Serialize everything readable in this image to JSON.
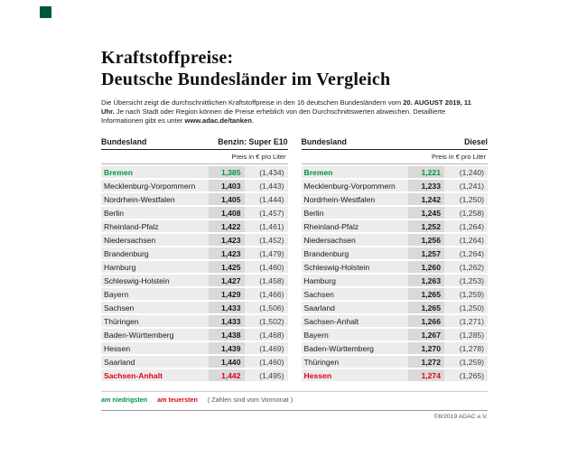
{
  "brand": {
    "square_color": "#00573c"
  },
  "header": {
    "title_line1": "Kraftstoffpreise:",
    "title_line2": "Deutsche Bundesländer im Vergleich"
  },
  "intro": {
    "p1": "Die Übersicht zeigt die durchschnittlichen Kraftstoffpreise in den 16 deutschen Bundesländern vom ",
    "b1": "20. AUGUST 2019, 11 Uhr.",
    "p2": " Je nach Stadt oder Region können die Preise erheblich von den Durchschnittswerten abweichen. Detaillierte Informationen gibt es unter ",
    "b2": "www.adac.de/tanken",
    "p3": "."
  },
  "legend": {
    "lowest_label": "am niedrigsten",
    "highest_label": "am teuersten",
    "note": "( Zahlen sind vom Vormonat )"
  },
  "footer": {
    "copyright": "©8/2019 ADAC e.V."
  },
  "colors": {
    "green": "#009641",
    "red": "#e2001a",
    "row_bg": "#ececec",
    "price_bg": "#d9d9d9"
  },
  "chart_data": [
    {
      "type": "table",
      "state_column": "Bundesland",
      "fuel_column": "Benzin: Super E10",
      "unit_label": "Preis in € pro Liter",
      "rows": [
        {
          "name": "Bremen",
          "price": "1,385",
          "prev": "(1,434)",
          "status": "lowest"
        },
        {
          "name": "Mecklenburg-Vorpommern",
          "price": "1,403",
          "prev": "(1,443)",
          "status": "normal"
        },
        {
          "name": "Nordrhein-Westfalen",
          "price": "1,405",
          "prev": "(1,444)",
          "status": "normal"
        },
        {
          "name": "Berlin",
          "price": "1,408",
          "prev": "(1,457)",
          "status": "normal"
        },
        {
          "name": "Rheinland-Pfalz",
          "price": "1,422",
          "prev": "(1,461)",
          "status": "normal"
        },
        {
          "name": "Niedersachsen",
          "price": "1,423",
          "prev": "(1,452)",
          "status": "normal"
        },
        {
          "name": "Brandenburg",
          "price": "1,423",
          "prev": "(1,479)",
          "status": "normal"
        },
        {
          "name": "Hamburg",
          "price": "1,425",
          "prev": "(1,460)",
          "status": "normal"
        },
        {
          "name": "Schleswig-Holstein",
          "price": "1,427",
          "prev": "(1,458)",
          "status": "normal"
        },
        {
          "name": "Bayern",
          "price": "1,429",
          "prev": "(1,466)",
          "status": "normal"
        },
        {
          "name": "Sachsen",
          "price": "1,433",
          "prev": "(1,506)",
          "status": "normal"
        },
        {
          "name": "Thüringen",
          "price": "1,433",
          "prev": "(1,502)",
          "status": "normal"
        },
        {
          "name": "Baden-Württemberg",
          "price": "1,438",
          "prev": "(1,468)",
          "status": "normal"
        },
        {
          "name": "Hessen",
          "price": "1,439",
          "prev": "(1,469)",
          "status": "normal"
        },
        {
          "name": "Saarland",
          "price": "1,440",
          "prev": "(1,460)",
          "status": "normal"
        },
        {
          "name": "Sachsen-Anhalt",
          "price": "1,442",
          "prev": "(1,495)",
          "status": "highest"
        }
      ]
    },
    {
      "type": "table",
      "state_column": "Bundesland",
      "fuel_column": "Diesel",
      "unit_label": "Preis in € pro Liter",
      "rows": [
        {
          "name": "Bremen",
          "price": "1,221",
          "prev": "(1,240)",
          "status": "lowest"
        },
        {
          "name": "Mecklenburg-Vorpommern",
          "price": "1,233",
          "prev": "(1,241)",
          "status": "normal"
        },
        {
          "name": "Nordrhein-Westfalen",
          "price": "1,242",
          "prev": "(1,250)",
          "status": "normal"
        },
        {
          "name": "Berlin",
          "price": "1,245",
          "prev": "(1,258)",
          "status": "normal"
        },
        {
          "name": "Rheinland-Pfalz",
          "price": "1,252",
          "prev": "(1,264)",
          "status": "normal"
        },
        {
          "name": "Niedersachsen",
          "price": "1,256",
          "prev": "(1,264)",
          "status": "normal"
        },
        {
          "name": "Brandenburg",
          "price": "1,257",
          "prev": "(1,264)",
          "status": "normal"
        },
        {
          "name": "Schleswig-Holstein",
          "price": "1,260",
          "prev": "(1,262)",
          "status": "normal"
        },
        {
          "name": "Hamburg",
          "price": "1,263",
          "prev": "(1,253)",
          "status": "normal"
        },
        {
          "name": "Sachsen",
          "price": "1,265",
          "prev": "(1,259)",
          "status": "normal"
        },
        {
          "name": "Saarland",
          "price": "1,265",
          "prev": "(1,250)",
          "status": "normal"
        },
        {
          "name": "Sachsen-Anhalt",
          "price": "1,266",
          "prev": "(1,271)",
          "status": "normal"
        },
        {
          "name": "Bayern",
          "price": "1,267",
          "prev": "(1,285)",
          "status": "normal"
        },
        {
          "name": "Baden-Württemberg",
          "price": "1,270",
          "prev": "(1,278)",
          "status": "normal"
        },
        {
          "name": "Thüringen",
          "price": "1,272",
          "prev": "(1,259)",
          "status": "normal"
        },
        {
          "name": "Hessen",
          "price": "1,274",
          "prev": "(1,265)",
          "status": "highest"
        }
      ]
    }
  ]
}
